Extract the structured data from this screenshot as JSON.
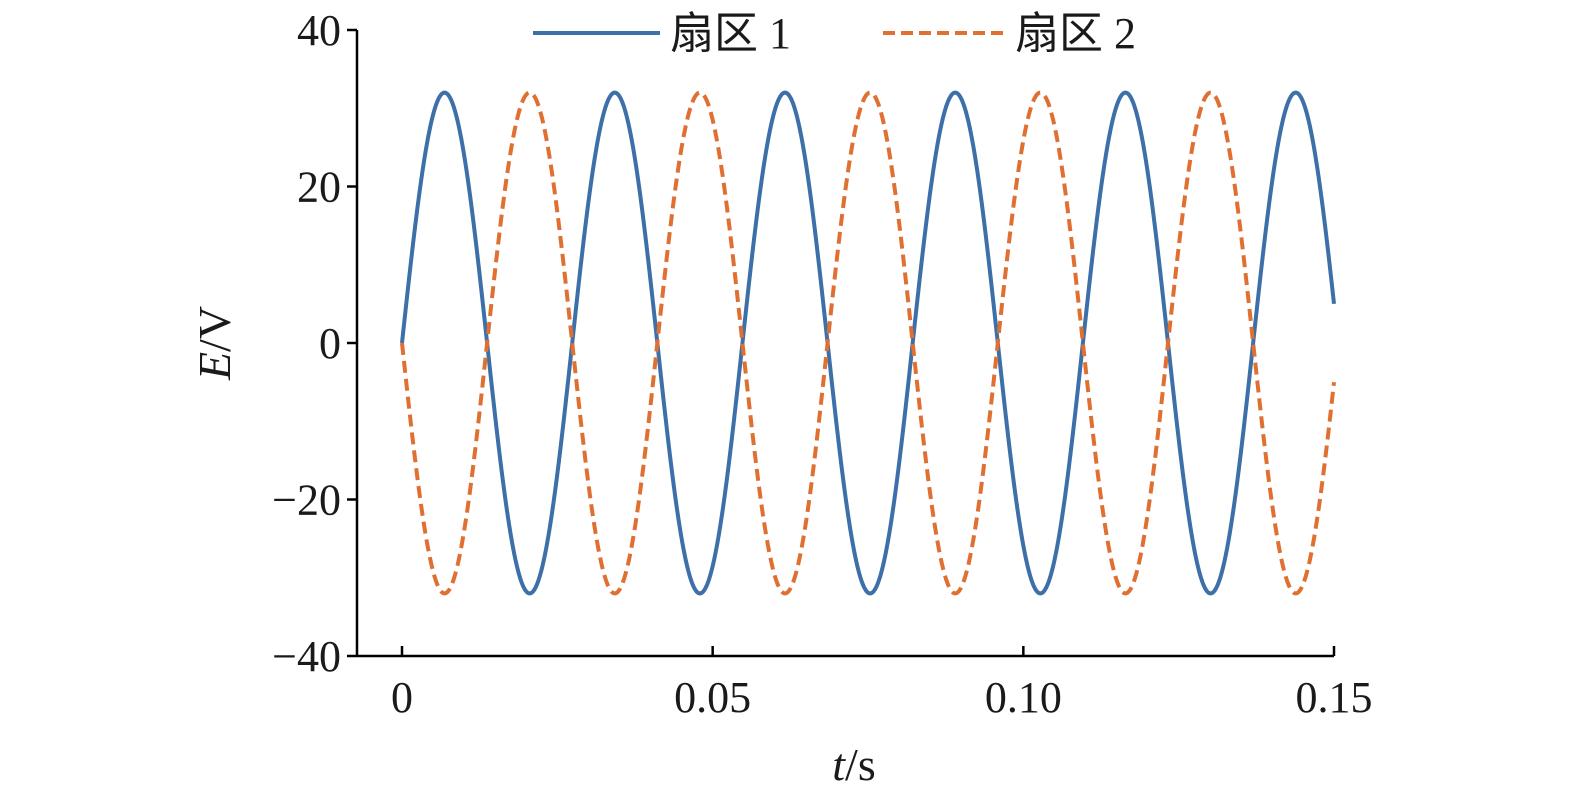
{
  "chart_data": {
    "type": "line",
    "xlabel": {
      "var": "t",
      "unit": "/s"
    },
    "ylabel": {
      "var": "E",
      "unit": "/V"
    },
    "xlim": [
      0,
      0.15
    ],
    "ylim": [
      -40,
      40
    ],
    "x_ticks": [
      0,
      0.05,
      0.1,
      0.15
    ],
    "x_tick_labels": [
      "0",
      "0.05",
      "0.10",
      "0.15"
    ],
    "y_ticks": [
      -40,
      -20,
      0,
      20,
      40
    ],
    "y_tick_labels": [
      "−40",
      "−20",
      "0",
      "20",
      "40"
    ],
    "grid": false,
    "legend_position": "top",
    "series": [
      {
        "name": "扇区 1",
        "style": "solid",
        "color": "#3d6fa8",
        "function": {
          "amplitude": 32,
          "frequency_hz": 36.5,
          "phase_rad": 0,
          "t_start": 0,
          "t_end": 0.15
        }
      },
      {
        "name": "扇区 2",
        "style": "dashed",
        "color": "#e07032",
        "function": {
          "amplitude": -32,
          "frequency_hz": 36.5,
          "phase_rad": 0,
          "t_start": 0,
          "t_end": 0.15
        }
      }
    ]
  }
}
